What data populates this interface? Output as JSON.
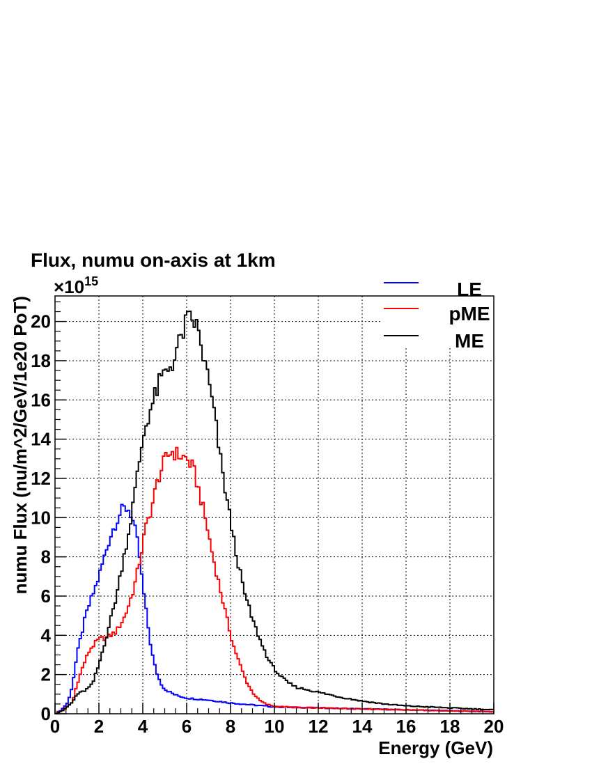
{
  "chart_data": {
    "type": "line",
    "title": "Flux, numu on-axis at 1km",
    "xlabel": "Energy (GeV)",
    "ylabel": "numu Flux (nu/m^2/GeV/1e20 PoT)",
    "y_multiplier": "×10",
    "y_exponent": "15",
    "xlim": [
      0,
      20
    ],
    "ylim": [
      0,
      21.3
    ],
    "x_ticks": [
      "0",
      "2",
      "4",
      "6",
      "8",
      "10",
      "12",
      "14",
      "16",
      "18",
      "20"
    ],
    "y_ticks": [
      "0",
      "2",
      "4",
      "6",
      "8",
      "10",
      "12",
      "14",
      "16",
      "18",
      "20"
    ],
    "grid": true,
    "legend_position": "top-right",
    "histogram": true,
    "series": [
      {
        "name": "LE",
        "color": "#0000ff",
        "points": [
          [
            0,
            0
          ],
          [
            0.3,
            0.2
          ],
          [
            0.6,
            0.6
          ],
          [
            0.8,
            1.5
          ],
          [
            1.0,
            3.0
          ],
          [
            1.2,
            4.0
          ],
          [
            1.4,
            5.0
          ],
          [
            1.6,
            5.7
          ],
          [
            1.8,
            6.3
          ],
          [
            2.0,
            7.0
          ],
          [
            2.2,
            7.8
          ],
          [
            2.4,
            8.6
          ],
          [
            2.6,
            9.3
          ],
          [
            2.8,
            9.8
          ],
          [
            3.0,
            10.3
          ],
          [
            3.2,
            10.5
          ],
          [
            3.4,
            10.4
          ],
          [
            3.6,
            9.6
          ],
          [
            3.8,
            8.5
          ],
          [
            4.0,
            6.5
          ],
          [
            4.2,
            4.8
          ],
          [
            4.4,
            3.2
          ],
          [
            4.6,
            2.2
          ],
          [
            4.8,
            1.6
          ],
          [
            5.0,
            1.25
          ],
          [
            5.5,
            0.95
          ],
          [
            6.0,
            0.8
          ],
          [
            7.0,
            0.7
          ],
          [
            8.0,
            0.55
          ],
          [
            9.0,
            0.45
          ],
          [
            10.0,
            0.35
          ],
          [
            12.0,
            0.3
          ],
          [
            14.0,
            0.25
          ],
          [
            16.0,
            0.2
          ],
          [
            18.0,
            0.15
          ],
          [
            20.0,
            0.1
          ]
        ]
      },
      {
        "name": "pME",
        "color": "#ff0000",
        "points": [
          [
            0,
            0
          ],
          [
            0.4,
            0.2
          ],
          [
            0.8,
            0.6
          ],
          [
            1.0,
            1.5
          ],
          [
            1.3,
            2.5
          ],
          [
            1.6,
            3.3
          ],
          [
            2.0,
            3.8
          ],
          [
            2.4,
            3.9
          ],
          [
            2.8,
            4.2
          ],
          [
            3.2,
            5.0
          ],
          [
            3.6,
            6.4
          ],
          [
            3.9,
            8.0
          ],
          [
            4.1,
            9.3
          ],
          [
            4.4,
            10.5
          ],
          [
            4.7,
            12.0
          ],
          [
            5.0,
            12.9
          ],
          [
            5.3,
            13.4
          ],
          [
            5.6,
            13.2
          ],
          [
            6.0,
            13.0
          ],
          [
            6.3,
            12.5
          ],
          [
            6.6,
            11.2
          ],
          [
            6.9,
            9.7
          ],
          [
            7.2,
            8.0
          ],
          [
            7.5,
            6.5
          ],
          [
            7.8,
            5.0
          ],
          [
            8.1,
            3.6
          ],
          [
            8.4,
            2.6
          ],
          [
            8.7,
            1.7
          ],
          [
            9.0,
            1.1
          ],
          [
            9.3,
            0.7
          ],
          [
            9.6,
            0.5
          ],
          [
            10.0,
            0.38
          ],
          [
            11.0,
            0.32
          ],
          [
            12.0,
            0.3
          ],
          [
            14.0,
            0.25
          ],
          [
            16.0,
            0.2
          ],
          [
            18.0,
            0.15
          ],
          [
            20.0,
            0.1
          ]
        ]
      },
      {
        "name": "ME",
        "color": "#000000",
        "points": [
          [
            0,
            0
          ],
          [
            0.4,
            0.2
          ],
          [
            0.8,
            0.6
          ],
          [
            1.0,
            1.0
          ],
          [
            1.4,
            1.2
          ],
          [
            1.7,
            1.5
          ],
          [
            2.0,
            2.5
          ],
          [
            2.4,
            4.2
          ],
          [
            2.8,
            6.0
          ],
          [
            3.1,
            7.8
          ],
          [
            3.4,
            9.5
          ],
          [
            3.6,
            11.0
          ],
          [
            3.8,
            12.5
          ],
          [
            4.0,
            14.0
          ],
          [
            4.2,
            15.0
          ],
          [
            4.5,
            16.0
          ],
          [
            4.8,
            17.0
          ],
          [
            5.1,
            17.5
          ],
          [
            5.4,
            18.0
          ],
          [
            5.7,
            19.0
          ],
          [
            6.0,
            20.0
          ],
          [
            6.3,
            20.1
          ],
          [
            6.5,
            19.6
          ],
          [
            6.7,
            18.5
          ],
          [
            7.0,
            17.0
          ],
          [
            7.3,
            15.0
          ],
          [
            7.6,
            12.5
          ],
          [
            7.9,
            10.5
          ],
          [
            8.2,
            8.5
          ],
          [
            8.6,
            6.3
          ],
          [
            9.0,
            4.8
          ],
          [
            9.4,
            3.6
          ],
          [
            9.8,
            2.6
          ],
          [
            10.2,
            2.0
          ],
          [
            10.6,
            1.6
          ],
          [
            11.0,
            1.35
          ],
          [
            12.0,
            1.1
          ],
          [
            13.0,
            0.85
          ],
          [
            14.0,
            0.65
          ],
          [
            15.0,
            0.5
          ],
          [
            16.0,
            0.4
          ],
          [
            17.0,
            0.35
          ],
          [
            18.0,
            0.3
          ],
          [
            19.0,
            0.25
          ],
          [
            20.0,
            0.2
          ]
        ]
      }
    ]
  }
}
